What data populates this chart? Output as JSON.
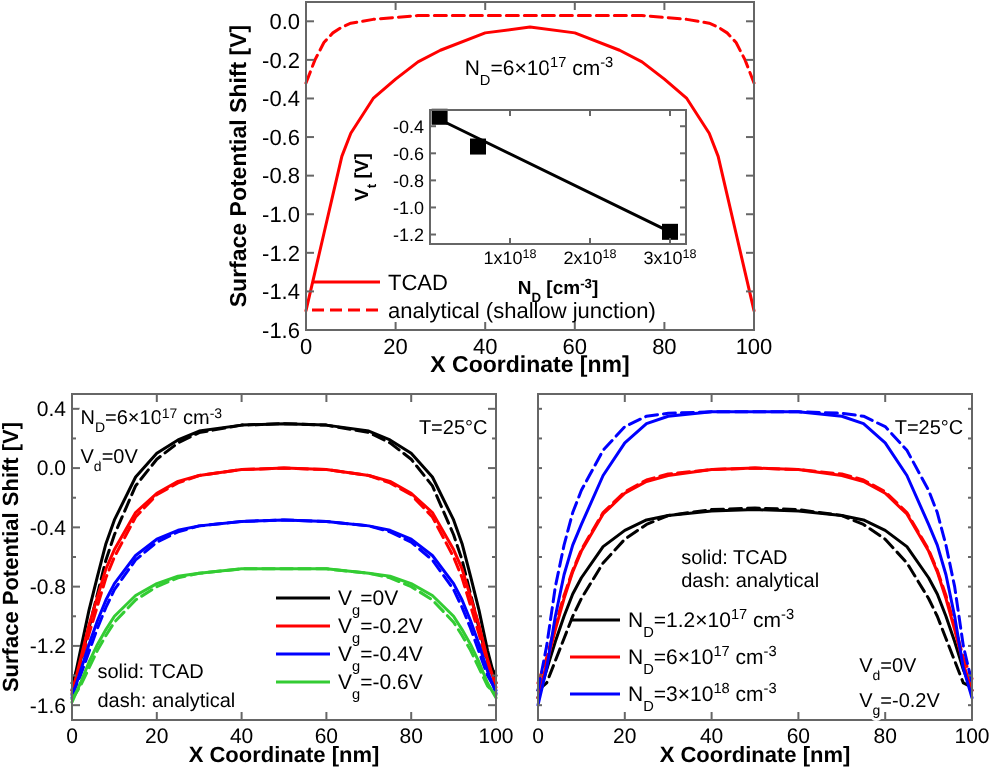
{
  "chart_data": [
    {
      "type": "line",
      "xlabel": "X Coordinate [nm]",
      "ylabel": "Surface Potential Shift [V]",
      "xlim": [
        0,
        100
      ],
      "ylim": [
        -1.6,
        0.1
      ],
      "xticks": [
        0,
        20,
        40,
        60,
        80,
        100
      ],
      "yticks": [
        {
          "value": 0,
          "label": "0.0"
        },
        -0.2,
        -0.4,
        -0.6,
        -0.8,
        {
          "value": -1,
          "label": "-1.0"
        },
        -1.2,
        -1.4,
        -1.6
      ],
      "legend": "bottom left",
      "annotations": [
        "N$_{D}$=6×10$^{17}$ cm$^{-3}$"
      ],
      "x": [
        0,
        2,
        4,
        6,
        8,
        10,
        15,
        20,
        25,
        30,
        40,
        50,
        60,
        70,
        75,
        80,
        85,
        90,
        92,
        94,
        96,
        98,
        100
      ],
      "series": [
        {
          "name": "TCAD",
          "color": "#ff0000",
          "line_style": "solid",
          "values": [
            -1.5,
            -1.3,
            -1.1,
            -0.9,
            -0.7,
            -0.58,
            -0.4,
            -0.3,
            -0.21,
            -0.15,
            -0.06,
            -0.03,
            -0.06,
            -0.15,
            -0.21,
            -0.3,
            -0.4,
            -0.58,
            -0.7,
            -0.9,
            -1.1,
            -1.3,
            -1.5
          ]
        },
        {
          "name": "analytical (shallow junction)",
          "color": "#ff0000",
          "line_style": "dashed",
          "values": [
            -0.32,
            -0.2,
            -0.11,
            -0.06,
            -0.03,
            -0.01,
            0.01,
            0.02,
            0.03,
            0.03,
            0.03,
            0.03,
            0.03,
            0.03,
            0.03,
            0.02,
            0.01,
            -0.01,
            -0.03,
            -0.06,
            -0.11,
            -0.2,
            -0.32
          ]
        }
      ]
    },
    {
      "type": "scatter",
      "xlabel": "N$_{D}$ [cm$^{-3}$]",
      "ylabel": "V$_{t}$ [V]",
      "xlim": [
        0,
        3.2e+18
      ],
      "ylim": [
        -1.27,
        -0.28
      ],
      "xticks": [
        {
          "value": 1e+18,
          "label": "1x10$^{18}$"
        },
        {
          "value": 2e+18,
          "label": "2x10$^{18}$"
        },
        {
          "value": 3e+18,
          "label": "3x10$^{18}$"
        }
      ],
      "yticks": [
        -0.4,
        -0.6,
        -0.8,
        {
          "value": -1,
          "label": "-1.0"
        },
        -1.2
      ],
      "series": [
        {
          "type": "line",
          "color": "#000000",
          "x": [
            1.2e+17,
            3e+18
          ],
          "values": [
            -0.35,
            -1.18
          ]
        },
        {
          "color": "#000000",
          "marker": "square",
          "x": [
            1.2e+17,
            6e+17,
            3e+18
          ],
          "values": [
            -0.33,
            -0.55,
            -1.18
          ]
        }
      ]
    },
    {
      "type": "line",
      "xlabel": "X Coordinate [nm]",
      "ylabel": "Surface Potential Shift [V]",
      "xlim": [
        0,
        100
      ],
      "ylim": [
        -1.7,
        0.5
      ],
      "xticks": [
        0,
        20,
        40,
        60,
        80,
        100
      ],
      "yticks": [
        0.4,
        {
          "value": 0.2,
          "label": null
        },
        {
          "value": 0,
          "label": "0.0"
        },
        {
          "value": -0.2,
          "label": null
        },
        -0.4,
        {
          "value": -0.6,
          "label": null
        },
        -0.8,
        {
          "value": -1,
          "label": null
        },
        -1.2,
        {
          "value": -1.4,
          "label": null
        },
        -1.6
      ],
      "legend": "bottom right",
      "annotations": [
        "N$_{D}$=6×10$^{17}$ cm$^{-3}$",
        "V$_{d}$=0V",
        "T=25°C",
        "solid: TCAD",
        "dash: analytical"
      ],
      "x": [
        0,
        2,
        4,
        6,
        8,
        10,
        15,
        20,
        25,
        30,
        40,
        50,
        60,
        70,
        75,
        80,
        85,
        90,
        92,
        94,
        96,
        98,
        100
      ],
      "series": [
        {
          "name": "V$_{g}$=0V",
          "color": "#000000",
          "line_style": "solid",
          "values": [
            -1.5,
            -1.23,
            -0.96,
            -0.73,
            -0.51,
            -0.35,
            -0.06,
            0.1,
            0.19,
            0.25,
            0.29,
            0.3,
            0.29,
            0.25,
            0.19,
            0.1,
            -0.06,
            -0.35,
            -0.51,
            -0.73,
            -0.96,
            -1.23,
            -1.45
          ]
        },
        {
          "color": "#000000",
          "line_style": "dashed",
          "values": [
            -1.45,
            -1.3,
            -1.08,
            -0.85,
            -0.62,
            -0.45,
            -0.12,
            0.06,
            0.17,
            0.24,
            0.29,
            0.3,
            0.29,
            0.24,
            0.17,
            0.06,
            -0.12,
            -0.45,
            -0.62,
            -0.85,
            -1.08,
            -1.3,
            -1.4
          ]
        },
        {
          "name": "V$_{g}$=-0.2V",
          "color": "#ff0000",
          "line_style": "solid",
          "values": [
            -1.52,
            -1.29,
            -1.06,
            -0.87,
            -0.68,
            -0.55,
            -0.3,
            -0.17,
            -0.09,
            -0.05,
            -0.01,
            0,
            -0.01,
            -0.05,
            -0.09,
            -0.17,
            -0.3,
            -0.55,
            -0.68,
            -0.87,
            -1.06,
            -1.29,
            -1.48
          ]
        },
        {
          "color": "#ff0000",
          "line_style": "dashed",
          "values": [
            -1.5,
            -1.33,
            -1.12,
            -0.93,
            -0.74,
            -0.6,
            -0.33,
            -0.18,
            -0.1,
            -0.05,
            -0.01,
            0,
            -0.01,
            -0.05,
            -0.1,
            -0.18,
            -0.33,
            -0.6,
            -0.74,
            -0.93,
            -1.12,
            -1.33,
            -1.45
          ]
        },
        {
          "name": "V$_{g}$=-0.4V",
          "color": "#0000ff",
          "line_style": "solid",
          "values": [
            -1.55,
            -1.37,
            -1.19,
            -1.03,
            -0.89,
            -0.78,
            -0.59,
            -0.48,
            -0.42,
            -0.39,
            -0.36,
            -0.35,
            -0.36,
            -0.39,
            -0.42,
            -0.48,
            -0.59,
            -0.78,
            -0.89,
            -1.03,
            -1.19,
            -1.37,
            -1.52
          ]
        },
        {
          "color": "#0000ff",
          "line_style": "dashed",
          "values": [
            -1.53,
            -1.4,
            -1.24,
            -1.08,
            -0.94,
            -0.82,
            -0.62,
            -0.5,
            -0.43,
            -0.39,
            -0.36,
            -0.35,
            -0.36,
            -0.39,
            -0.43,
            -0.5,
            -0.62,
            -0.82,
            -0.94,
            -1.08,
            -1.24,
            -1.4,
            -1.5
          ]
        },
        {
          "name": "V$_{g}$=-0.6V",
          "color": "#33cc33",
          "line_style": "solid",
          "values": [
            -1.58,
            -1.45,
            -1.31,
            -1.19,
            -1.09,
            -1.0,
            -0.86,
            -0.78,
            -0.73,
            -0.71,
            -0.68,
            -0.68,
            -0.68,
            -0.71,
            -0.73,
            -0.78,
            -0.86,
            -1.0,
            -1.09,
            -1.19,
            -1.31,
            -1.45,
            -1.55
          ]
        },
        {
          "color": "#33cc33",
          "line_style": "dashed",
          "values": [
            -1.56,
            -1.47,
            -1.35,
            -1.23,
            -1.13,
            -1.04,
            -0.89,
            -0.8,
            -0.74,
            -0.71,
            -0.68,
            -0.68,
            -0.68,
            -0.71,
            -0.74,
            -0.8,
            -0.89,
            -1.04,
            -1.13,
            -1.23,
            -1.35,
            -1.47,
            -1.53
          ]
        }
      ]
    },
    {
      "type": "line",
      "xlabel": "X Coordinate [nm]",
      "xlim": [
        0,
        100
      ],
      "ylim": [
        -1.7,
        0.5
      ],
      "xticks": [
        0,
        20,
        40,
        60,
        80,
        100
      ],
      "yticks": [
        {
          "value": 0.4,
          "label": null
        },
        {
          "value": 0.2,
          "label": null
        },
        {
          "value": 0,
          "label": null
        },
        {
          "value": -0.2,
          "label": null
        },
        {
          "value": -0.4,
          "label": null
        },
        {
          "value": -0.6,
          "label": null
        },
        {
          "value": -0.8,
          "label": null
        },
        {
          "value": -1,
          "label": null
        },
        {
          "value": -1.2,
          "label": null
        },
        {
          "value": -1.4,
          "label": null
        },
        {
          "value": -1.6,
          "label": null
        }
      ],
      "tick_labels": "x",
      "legend": "bottom left",
      "annotations": [
        "T=25°C",
        "solid: TCAD",
        "dash: analytical",
        "V$_{d}$=0V",
        "V$_{g}$=-0.2V"
      ],
      "x": [
        0,
        2,
        4,
        6,
        8,
        10,
        15,
        20,
        25,
        30,
        40,
        50,
        60,
        70,
        75,
        80,
        85,
        90,
        92,
        94,
        96,
        98,
        100
      ],
      "series": [
        {
          "name": "N$_{D}$=1.2×10$^{17}$ cm$^{-3}$",
          "color": "#000000",
          "line_style": "solid",
          "values": [
            -1.55,
            -1.36,
            -1.17,
            -1.0,
            -0.85,
            -0.74,
            -0.53,
            -0.42,
            -0.35,
            -0.32,
            -0.29,
            -0.28,
            -0.29,
            -0.32,
            -0.35,
            -0.42,
            -0.53,
            -0.74,
            -0.85,
            -1.0,
            -1.17,
            -1.36,
            -1.5
          ]
        },
        {
          "color": "#000000",
          "line_style": "dashed",
          "values": [
            -1.5,
            -1.45,
            -1.3,
            -1.15,
            -1.0,
            -0.88,
            -0.64,
            -0.48,
            -0.38,
            -0.32,
            -0.28,
            -0.27,
            -0.28,
            -0.32,
            -0.38,
            -0.48,
            -0.64,
            -0.88,
            -1.0,
            -1.15,
            -1.3,
            -1.45,
            -1.48
          ]
        },
        {
          "name": "N$_{D}$=6×10$^{17}$ cm$^{-3}$",
          "color": "#ff0000",
          "line_style": "solid",
          "values": [
            -1.55,
            -1.32,
            -1.09,
            -0.88,
            -0.7,
            -0.56,
            -0.31,
            -0.17,
            -0.09,
            -0.05,
            -0.01,
            0,
            -0.01,
            -0.05,
            -0.09,
            -0.17,
            -0.31,
            -0.56,
            -0.7,
            -0.88,
            -1.09,
            -1.32,
            -1.5
          ]
        },
        {
          "color": "#ff0000",
          "line_style": "dashed",
          "values": [
            -1.45,
            -1.28,
            -1.06,
            -0.86,
            -0.69,
            -0.55,
            -0.3,
            -0.16,
            -0.08,
            -0.04,
            -0.01,
            0,
            -0.01,
            -0.04,
            -0.08,
            -0.16,
            -0.3,
            -0.55,
            -0.69,
            -0.86,
            -1.06,
            -1.28,
            -1.42
          ]
        },
        {
          "name": "N$_{D}$=3×10$^{18}$ cm$^{-3}$",
          "color": "#0000ff",
          "line_style": "solid",
          "values": [
            -1.6,
            -1.35,
            -1.0,
            -0.72,
            -0.52,
            -0.38,
            -0.05,
            0.17,
            0.3,
            0.35,
            0.38,
            0.38,
            0.38,
            0.35,
            0.3,
            0.17,
            -0.05,
            -0.38,
            -0.52,
            -0.72,
            -1.0,
            -1.35,
            -1.55
          ]
        },
        {
          "color": "#0000ff",
          "line_style": "dashed",
          "values": [
            -1.5,
            -1.2,
            -0.8,
            -0.52,
            -0.3,
            -0.15,
            0.12,
            0.28,
            0.35,
            0.37,
            0.38,
            0.38,
            0.38,
            0.37,
            0.35,
            0.28,
            0.12,
            -0.15,
            -0.3,
            -0.52,
            -0.8,
            -1.2,
            -1.45
          ]
        }
      ]
    }
  ]
}
